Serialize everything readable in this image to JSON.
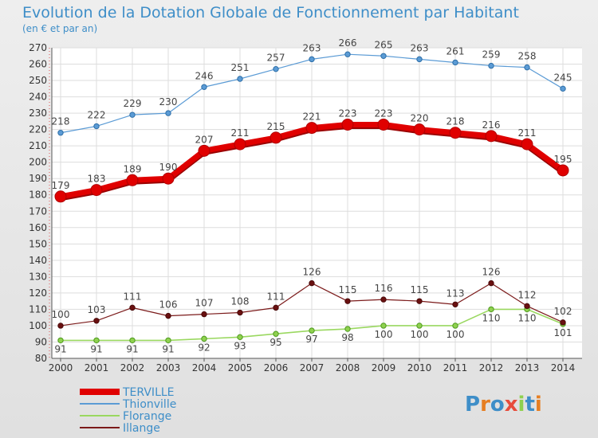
{
  "chart": {
    "title": "Evolution de la Dotation Globale de Fonctionnement par Habitant",
    "subtitle": "(en € et par an)"
  },
  "logo": {
    "text": "Proxiti"
  },
  "chart_data": {
    "type": "line",
    "title": "Evolution de la Dotation Globale de Fonctionnement par Habitant",
    "subtitle": "(en € et par an)",
    "xlabel": "",
    "ylabel": "",
    "x": [
      "2000",
      "2001",
      "2002",
      "2003",
      "2004",
      "2005",
      "2006",
      "2007",
      "2008",
      "2009",
      "2010",
      "2011",
      "2012",
      "2013",
      "2014"
    ],
    "ylim": [
      80,
      270
    ],
    "yticks": [
      80,
      90,
      100,
      110,
      120,
      130,
      140,
      150,
      160,
      170,
      180,
      190,
      200,
      210,
      220,
      230,
      240,
      250,
      260,
      270
    ],
    "grid": true,
    "legend_position": "bottom-left",
    "series": [
      {
        "name": "TERVILLE",
        "color": "#e00000",
        "values": [
          179,
          183,
          189,
          190,
          207,
          211,
          215,
          221,
          223,
          223,
          220,
          218,
          216,
          211,
          195
        ]
      },
      {
        "name": "Thionville",
        "color": "#5b9bd5",
        "values": [
          218,
          222,
          229,
          230,
          246,
          251,
          257,
          263,
          266,
          265,
          263,
          261,
          259,
          258,
          245
        ]
      },
      {
        "name": "Florange",
        "color": "#8fd14f",
        "values": [
          91,
          91,
          91,
          91,
          92,
          93,
          95,
          97,
          98,
          100,
          100,
          100,
          110,
          110,
          101
        ]
      },
      {
        "name": "Illange",
        "color": "#7b1a1a",
        "values": [
          100,
          103,
          111,
          106,
          107,
          108,
          111,
          126,
          115,
          116,
          115,
          113,
          126,
          112,
          102
        ]
      }
    ]
  }
}
